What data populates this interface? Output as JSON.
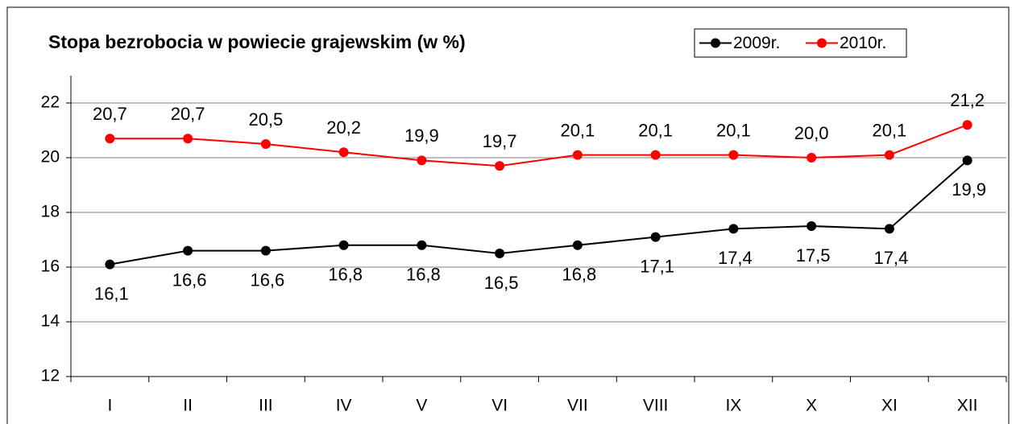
{
  "chart_data": {
    "type": "line",
    "title": "Stopa bezrobocia w powiecie grajewskim (w %)",
    "categories": [
      "I",
      "II",
      "III",
      "IV",
      "V",
      "VI",
      "VII",
      "VIII",
      "IX",
      "X",
      "XI",
      "XII"
    ],
    "series": [
      {
        "name": "2009r.",
        "color": "#000000",
        "values": [
          16.1,
          16.6,
          16.6,
          16.8,
          16.8,
          16.5,
          16.8,
          17.1,
          17.4,
          17.5,
          17.4,
          19.9
        ],
        "value_labels": [
          "16,1",
          "16,6",
          "16,6",
          "16,8",
          "16,8",
          "16,5",
          "16,8",
          "17,1",
          "17,4",
          "17,5",
          "17,4",
          "19,9"
        ]
      },
      {
        "name": "2010r.",
        "color": "#ff0000",
        "values": [
          20.7,
          20.7,
          20.5,
          20.2,
          19.9,
          19.7,
          20.1,
          20.1,
          20.1,
          20.0,
          20.1,
          21.2
        ],
        "value_labels": [
          "20,7",
          "20,7",
          "20,5",
          "20,2",
          "19,9",
          "19,7",
          "20,1",
          "20,1",
          "20,1",
          "20,0",
          "20,1",
          "21,2"
        ]
      }
    ],
    "ylim": [
      12,
      23
    ],
    "yticks": [
      12,
      14,
      16,
      18,
      20,
      22
    ],
    "grid": true,
    "legend": "top-right"
  }
}
